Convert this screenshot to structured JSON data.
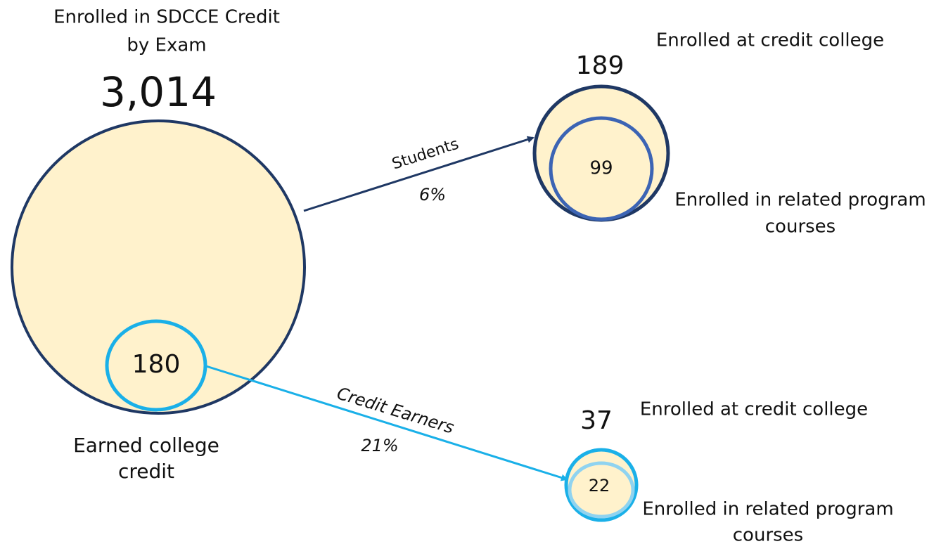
{
  "source": {
    "title": [
      "Enrolled in SDCCE Credit",
      "by Exam"
    ],
    "count": "3,014",
    "subset": {
      "count": "180",
      "label": [
        "Earned college",
        "credit"
      ]
    }
  },
  "flows": [
    {
      "label": "Students",
      "percent": "6%",
      "target": {
        "count": "189",
        "label": "Enrolled at credit college",
        "inner": {
          "count": "99",
          "label": [
            "Enrolled in related program",
            "courses"
          ]
        }
      }
    },
    {
      "label": "Credit Earners",
      "percent": "21%",
      "target": {
        "count": "37",
        "label": "Enrolled at credit college",
        "inner": {
          "count": "22",
          "label": [
            "Enrolled in related program",
            "courses"
          ]
        }
      }
    }
  ]
}
